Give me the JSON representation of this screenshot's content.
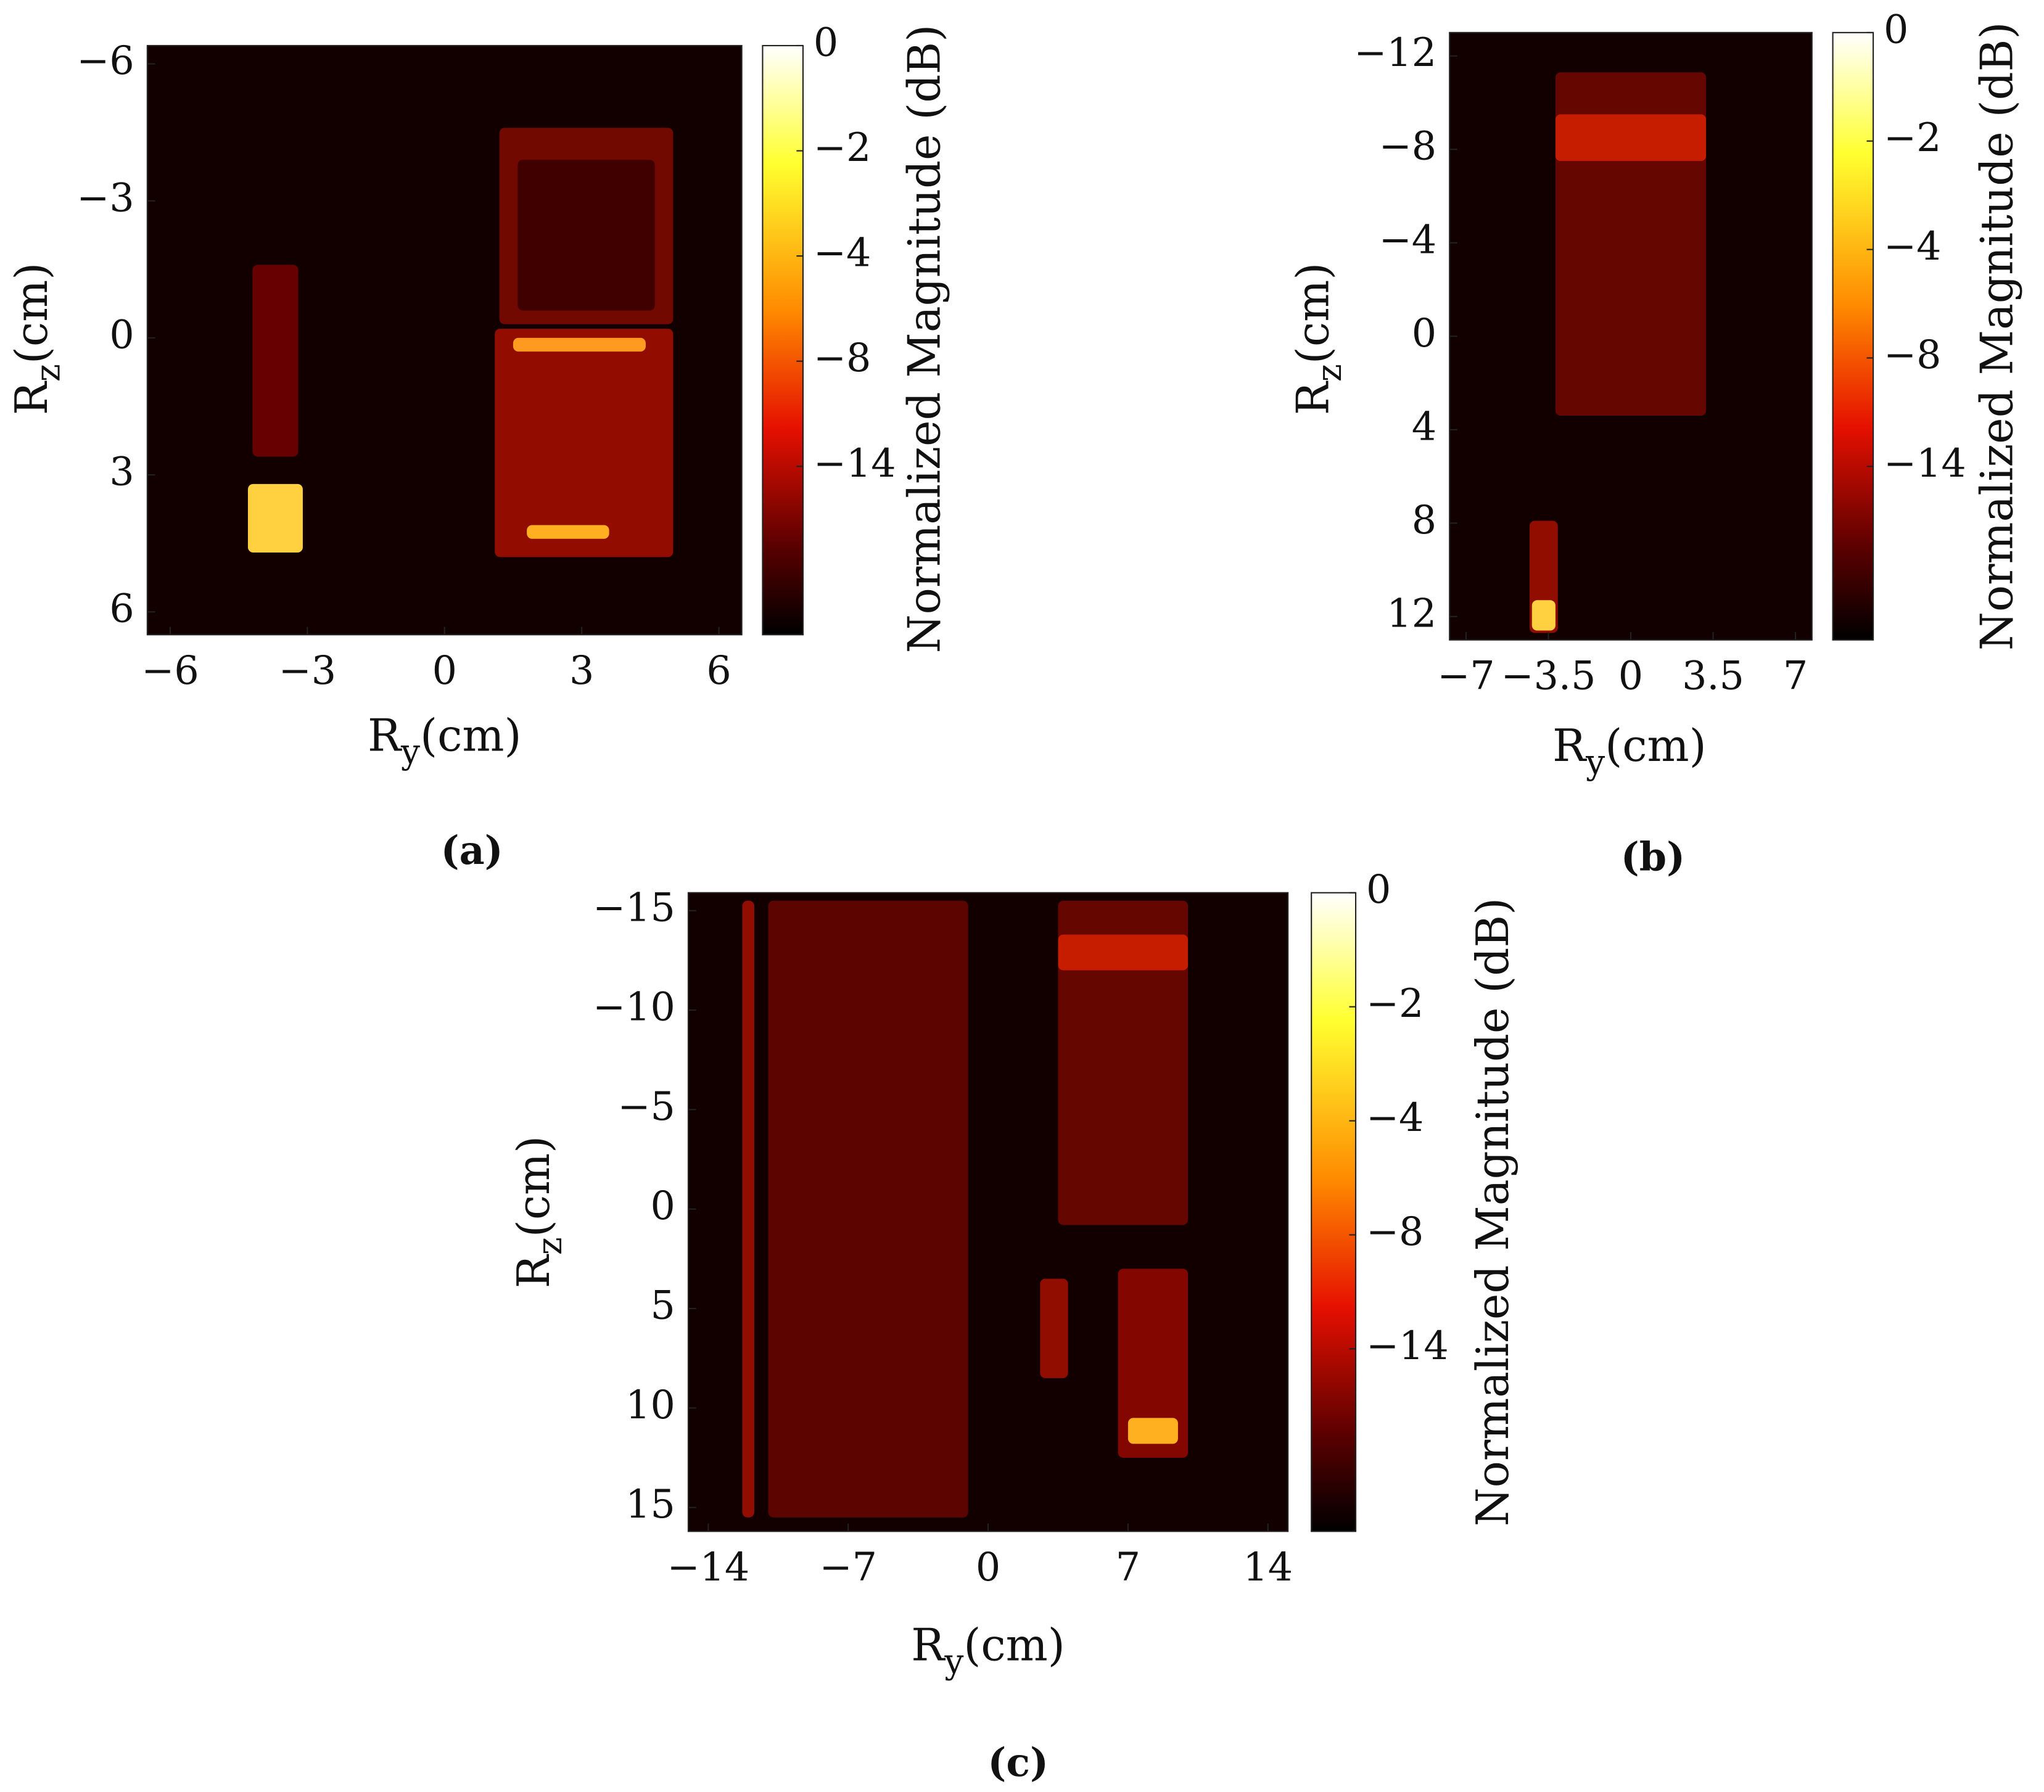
{
  "chart_data": [
    {
      "type": "heatmap",
      "caption": "(a)",
      "xlabel": {
        "symbol": "R",
        "subscript": "y",
        "unit": "(cm)"
      },
      "ylabel": {
        "symbol": "R",
        "subscript": "z",
        "unit": "(cm)"
      },
      "colorbar_label": "Normalized Magnitude (dB)",
      "xlim": [
        -6.5,
        6.5
      ],
      "ylim": [
        -6.4,
        6.5
      ],
      "xticks": [
        {
          "value": -6,
          "label": "−6"
        },
        {
          "value": -3,
          "label": "−3"
        },
        0,
        3,
        6
      ],
      "yticks": [
        {
          "value": -6,
          "label": "−6"
        },
        {
          "value": -3,
          "label": "−3"
        },
        0,
        3,
        6
      ],
      "colorbar_ticks": [
        0,
        {
          "value": -2,
          "label": "−2"
        },
        {
          "value": -4,
          "label": "−4"
        },
        {
          "value": -8,
          "label": "−8"
        },
        {
          "value": -14,
          "label": "−14"
        }
      ]
    },
    {
      "type": "heatmap",
      "caption": "(b)",
      "xlabel": {
        "symbol": "R",
        "subscript": "y",
        "unit": "(cm)"
      },
      "ylabel": {
        "symbol": "R",
        "subscript": "z",
        "unit": "(cm)"
      },
      "colorbar_label": "Normalized Magnitude (dB)",
      "xlim": [
        -7.7,
        7.7
      ],
      "ylim": [
        -13,
        13
      ],
      "xticks": [
        {
          "value": -7,
          "label": "−7"
        },
        {
          "value": -3.5,
          "label": "−3.5"
        },
        0,
        3.5,
        7
      ],
      "yticks": [
        {
          "value": -12,
          "label": "−12"
        },
        {
          "value": -8,
          "label": "−8"
        },
        {
          "value": -4,
          "label": "−4"
        },
        0,
        4,
        8,
        12
      ],
      "colorbar_ticks": [
        0,
        {
          "value": -2,
          "label": "−2"
        },
        {
          "value": -4,
          "label": "−4"
        },
        {
          "value": -8,
          "label": "−8"
        },
        {
          "value": -14,
          "label": "−14"
        }
      ]
    },
    {
      "type": "heatmap",
      "caption": "(c)",
      "xlabel": {
        "symbol": "R",
        "subscript": "y",
        "unit": "(cm)"
      },
      "ylabel": {
        "symbol": "R",
        "subscript": "z",
        "unit": "(cm)"
      },
      "colorbar_label": "Normalized Magnitude (dB)",
      "xlim": [
        -15,
        15
      ],
      "ylim": [
        -15.9,
        16.2
      ],
      "xticks": [
        {
          "value": -14,
          "label": "−14"
        },
        {
          "value": -7,
          "label": "−7"
        },
        0,
        7,
        14
      ],
      "yticks": [
        {
          "value": -15,
          "label": "−15"
        },
        {
          "value": -10,
          "label": "−10"
        },
        {
          "value": -5,
          "label": "−5"
        },
        0,
        5,
        10,
        15
      ],
      "colorbar_ticks": [
        0,
        {
          "value": -2,
          "label": "−2"
        },
        {
          "value": -4,
          "label": "−4"
        },
        {
          "value": -8,
          "label": "−8"
        },
        {
          "value": -14,
          "label": "−14"
        }
      ]
    }
  ]
}
